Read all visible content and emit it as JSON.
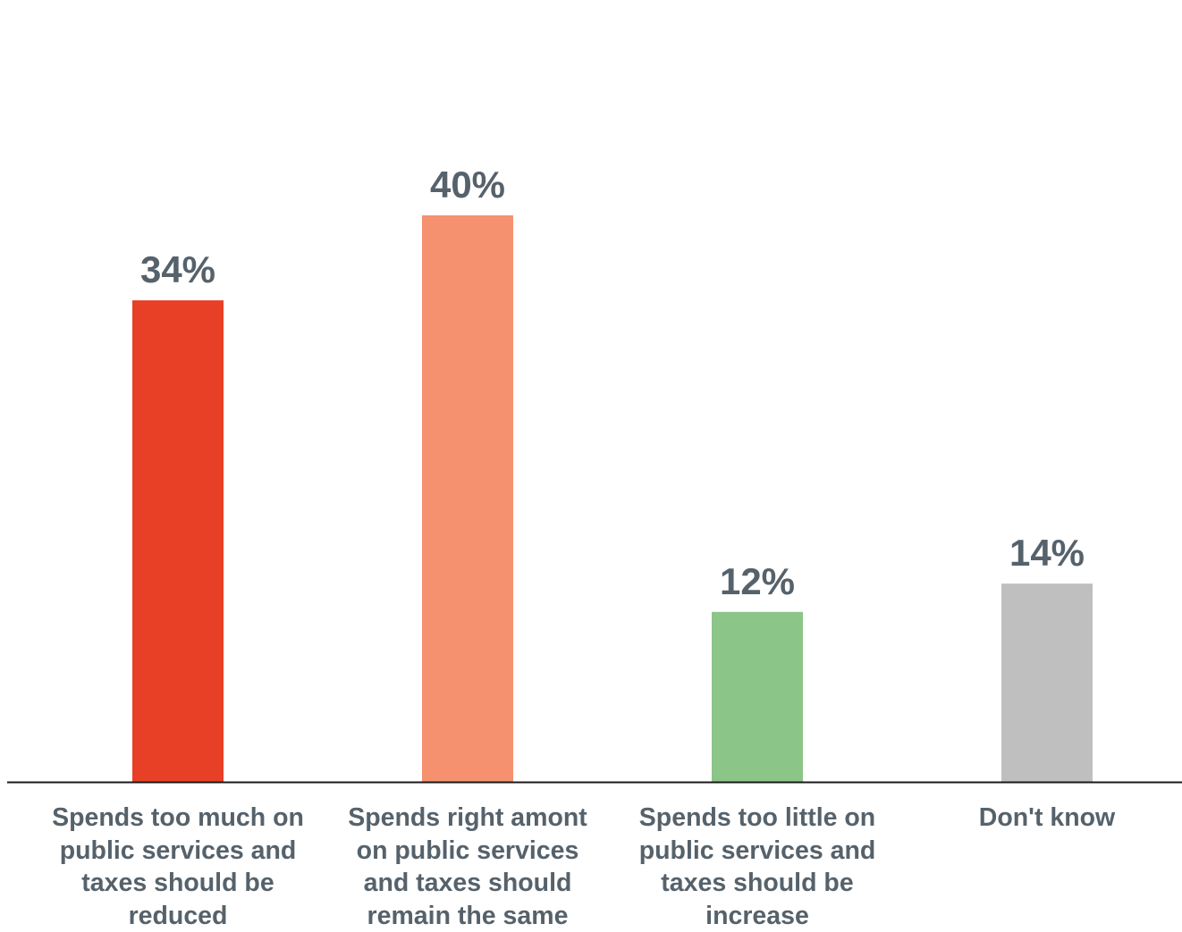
{
  "chart_data": {
    "type": "bar",
    "title": "",
    "xlabel": "",
    "ylabel": "",
    "ylim": [
      0,
      44
    ],
    "grid": false,
    "categories": [
      "Spends too much on public services and taxes should be reduced",
      "Spends right amont on public services and taxes should remain the same",
      "Spends too little on public services and taxes should be increase",
      "Don't know"
    ],
    "category_lines": [
      [
        "Spends too much on",
        "public services and",
        "taxes should be",
        "reduced"
      ],
      [
        "Spends right amont",
        "on public services",
        "and taxes should",
        "remain the same"
      ],
      [
        "Spends too little on",
        "public services and",
        "taxes should be",
        "increase"
      ],
      [
        "Don't know"
      ]
    ],
    "values": [
      34,
      40,
      12,
      14
    ],
    "value_labels": [
      "34%",
      "40%",
      "12%",
      "14%"
    ],
    "colors": [
      "#e84026",
      "#f5916e",
      "#8bc587",
      "#bfbfbf"
    ]
  }
}
